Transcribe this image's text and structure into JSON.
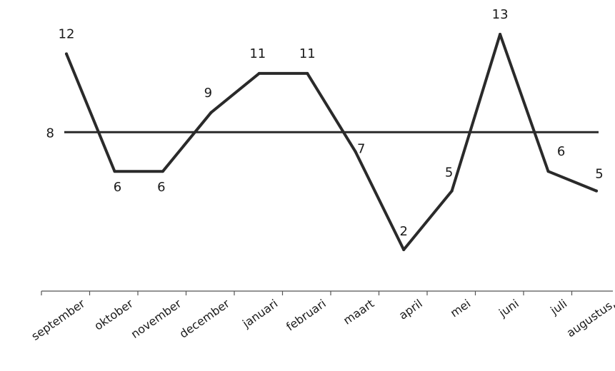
{
  "chart_data": {
    "type": "line",
    "categories": [
      "september",
      "oktober",
      "november",
      "december",
      "januari",
      "februari",
      "maart",
      "april",
      "mei",
      "juni",
      "juli",
      "augustus,"
    ],
    "series": [
      {
        "values": [
          12,
          6,
          6,
          9,
          11,
          11,
          7,
          2,
          5,
          13,
          6,
          5
        ]
      }
    ],
    "data_labels": [
      "12",
      "6",
      "6",
      "9",
      "11",
      "11",
      "7",
      "2",
      "5",
      "13",
      "6",
      "5"
    ],
    "reference_line": {
      "value": 8,
      "label": "8"
    },
    "title": "",
    "xlabel": "",
    "ylabel": "",
    "ylim": [
      0,
      14
    ],
    "grid": false,
    "legend": "none",
    "colors": {
      "line": "#2a2a2a",
      "axis": "#555555",
      "text": "#1a1a1a"
    }
  }
}
